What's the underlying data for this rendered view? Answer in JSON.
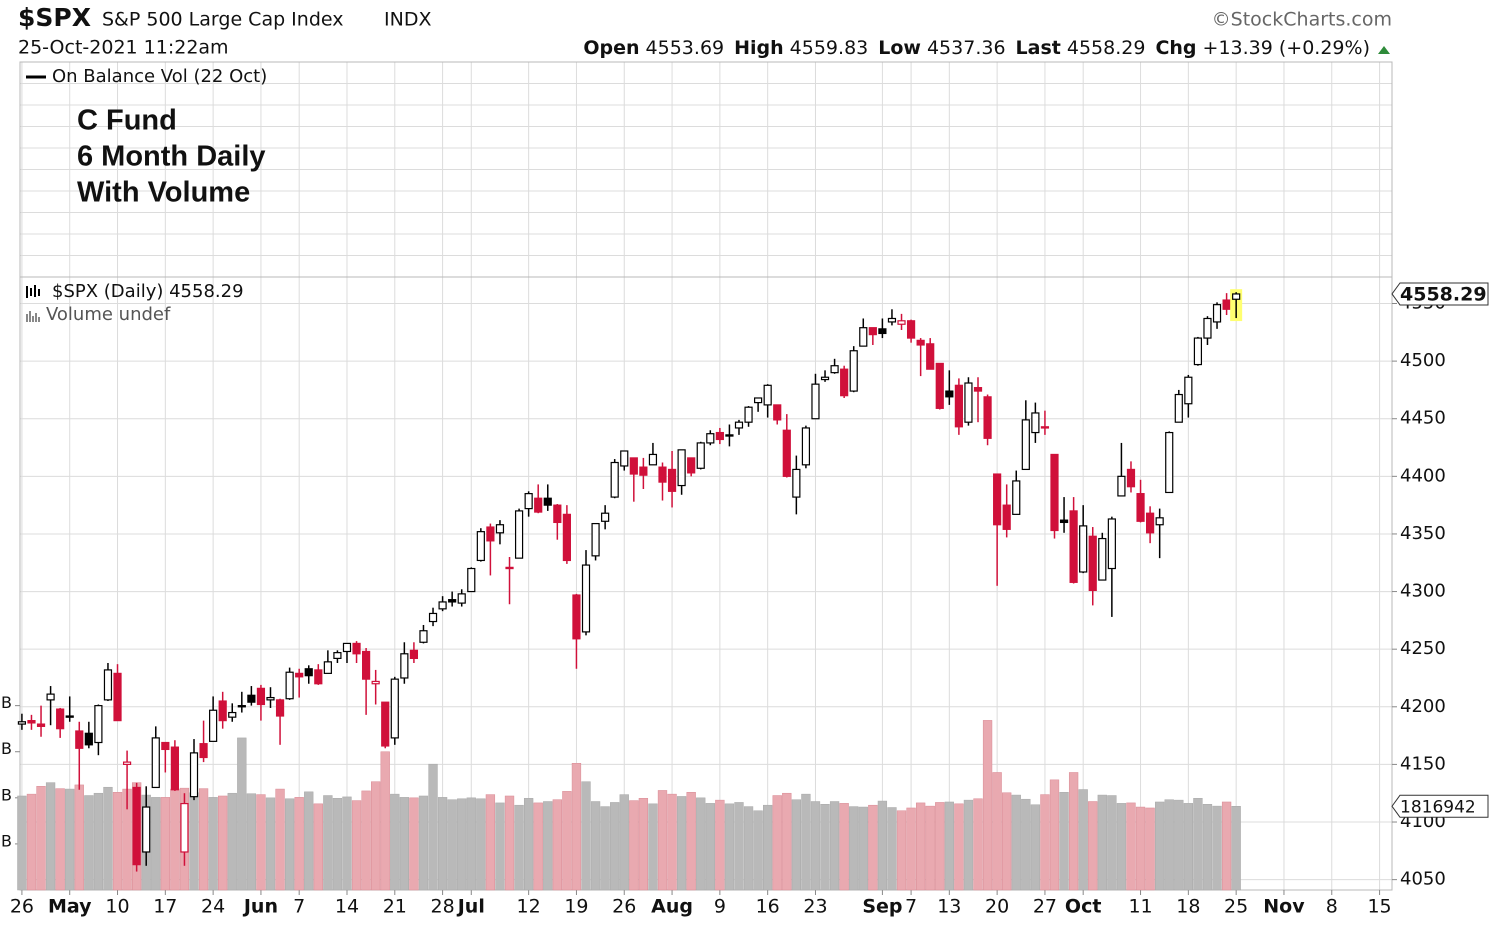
{
  "chart_data": {
    "type": "candlestick",
    "title": "$SPX",
    "subtitle": "S&P 500 Large Cap Index",
    "exchange": "INDX",
    "source": "©StockCharts.com",
    "timestamp": "25-Oct-2021 11:22am",
    "stats": [
      {
        "label": "Open",
        "value": 4553.69
      },
      {
        "label": "High",
        "value": 4559.83
      },
      {
        "label": "Low",
        "value": 4537.36
      },
      {
        "label": "Last",
        "value": 4558.29
      },
      {
        "label": "Chg",
        "value": "+13.39 (+0.29%)"
      }
    ],
    "indicator_legend": "On Balance Vol (22 Oct)",
    "annotation": [
      "C Fund",
      "6 Month Daily",
      "With Volume"
    ],
    "price_legend": "$SPX (Daily) 4558.29",
    "volume_legend": "Volume undef",
    "x": [
      0,
      1,
      2,
      3,
      4,
      5,
      6,
      7,
      8,
      9,
      10,
      11,
      12,
      13,
      14,
      15,
      16,
      17,
      18,
      19,
      20,
      21,
      22,
      23,
      24,
      25,
      26,
      27,
      28,
      29,
      30,
      31,
      32,
      33,
      34,
      35,
      36,
      37,
      38,
      39,
      40,
      41,
      42,
      43,
      44,
      45,
      46,
      47,
      48,
      49,
      50,
      51,
      52,
      53,
      54,
      55,
      56,
      57,
      58,
      59,
      60,
      61,
      62,
      63,
      64,
      65,
      66,
      67,
      68,
      69,
      70,
      71,
      72,
      73,
      74,
      75,
      76,
      77,
      78,
      79,
      80,
      81,
      82,
      83,
      84,
      85,
      86,
      87,
      88,
      89,
      90,
      91,
      92,
      93,
      94,
      95,
      96,
      97,
      98,
      99,
      100,
      101,
      102,
      103,
      104,
      105,
      106,
      107,
      108,
      109,
      110,
      111,
      112,
      113,
      114,
      115,
      116,
      117,
      118,
      119,
      120,
      121,
      122,
      123,
      124,
      125,
      126,
      127
    ],
    "open": [
      4185,
      4188,
      4185,
      4206,
      4198,
      4191,
      4179,
      4177,
      4169,
      4206,
      4229,
      4150,
      4130,
      4074,
      4130,
      4169,
      4165,
      4074,
      4122,
      4168,
      4170,
      4205,
      4191,
      4201,
      4210,
      4216,
      4206,
      4206,
      4207,
      4229,
      4233,
      4232,
      4229,
      4242,
      4248,
      4255,
      4248,
      4220,
      4204,
      4173,
      4225,
      4249,
      4256,
      4274,
      4285,
      4293,
      4290,
      4300,
      4327,
      4356,
      4351,
      4321,
      4329,
      4372,
      4381,
      4381,
      4375,
      4367,
      4297,
      4265,
      4331,
      4361,
      4382,
      4409,
      4416,
      4408,
      4410,
      4408,
      4406,
      4392,
      4416,
      4407,
      4429,
      4438,
      4435,
      4442,
      4447,
      4464,
      4462,
      4462,
      4440,
      4382,
      4410,
      4450,
      4484,
      4490,
      4493,
      4474,
      4513,
      4529,
      4528,
      4534,
      4532,
      4535,
      4518,
      4515,
      4498,
      4474,
      4479,
      4447,
      4477,
      4469,
      4402,
      4375,
      4367,
      4406,
      4438,
      4442,
      4419,
      4362,
      4370,
      4317,
      4348,
      4310,
      4320,
      4383,
      4406,
      4385,
      4368,
      4358,
      4386,
      4447,
      4463,
      4497,
      4520,
      4534,
      4553,
      4553.69
    ],
    "high": [
      4194,
      4193,
      4201,
      4218,
      4199,
      4209,
      4187,
      4187,
      4202,
      4238,
      4237,
      4162,
      4134,
      4131,
      4183,
      4169,
      4171,
      4125,
      4172,
      4188,
      4209,
      4213,
      4203,
      4213,
      4218,
      4219,
      4217,
      4207,
      4234,
      4233,
      4236,
      4237,
      4249,
      4249,
      4255,
      4257,
      4251,
      4232,
      4204,
      4226,
      4256,
      4256,
      4271,
      4286,
      4296,
      4300,
      4302,
      4321,
      4355,
      4359,
      4362,
      4330,
      4372,
      4387,
      4393,
      4393,
      4376,
      4375,
      4298,
      4336,
      4359,
      4375,
      4415,
      4422,
      4416,
      4416,
      4429,
      4412,
      4422,
      4423,
      4416,
      4430,
      4440,
      4442,
      4445,
      4449,
      4461,
      4468,
      4480,
      4462,
      4454,
      4418,
      4444,
      4489,
      4492,
      4502,
      4496,
      4513,
      4537,
      4528,
      4537,
      4545,
      4541,
      4536,
      4520,
      4520,
      4498,
      4492,
      4485,
      4486,
      4486,
      4471,
      4402,
      4393,
      4405,
      4466,
      4464,
      4457,
      4419,
      4382,
      4382,
      4375,
      4356,
      4351,
      4365,
      4429,
      4413,
      4397,
      4374,
      4372,
      4439,
      4475,
      4488,
      4521,
      4539,
      4551,
      4559,
      4559.83
    ],
    "low": [
      4180,
      4180,
      4174,
      4184,
      4173,
      4187,
      4128,
      4164,
      4158,
      4205,
      4188,
      4111,
      4057,
      4062,
      4130,
      4143,
      4127,
      4062,
      4119,
      4152,
      4170,
      4181,
      4187,
      4195,
      4201,
      4188,
      4199,
      4167,
      4206,
      4208,
      4220,
      4219,
      4229,
      4238,
      4238,
      4238,
      4193,
      4202,
      4164,
      4167,
      4220,
      4238,
      4255,
      4270,
      4283,
      4287,
      4287,
      4300,
      4326,
      4314,
      4341,
      4289,
      4329,
      4365,
      4368,
      4370,
      4345,
      4324,
      4233,
      4262,
      4327,
      4354,
      4381,
      4405,
      4378,
      4389,
      4410,
      4379,
      4373,
      4384,
      4400,
      4406,
      4427,
      4428,
      4426,
      4436,
      4443,
      4456,
      4451,
      4445,
      4399,
      4367,
      4407,
      4450,
      4482,
      4489,
      4468,
      4473,
      4513,
      4514,
      4520,
      4531,
      4527,
      4516,
      4487,
      4493,
      4458,
      4462,
      4436,
      4444,
      4447,
      4427,
      4305,
      4347,
      4367,
      4406,
      4429,
      4436,
      4346,
      4351,
      4307,
      4316,
      4288,
      4310,
      4278,
      4383,
      4386,
      4360,
      4342,
      4329,
      4386,
      4447,
      4451,
      4496,
      4514,
      4528,
      4540,
      4537.36
    ],
    "close": [
      4187,
      4186,
      4183,
      4211,
      4181,
      4192,
      4164,
      4167,
      4201,
      4232,
      4188,
      4152,
      4063,
      4113,
      4173,
      4163,
      4128,
      4116,
      4160,
      4156,
      4197,
      4188,
      4195,
      4200,
      4204,
      4202,
      4208,
      4192,
      4230,
      4226,
      4227,
      4220,
      4239,
      4247,
      4255,
      4246,
      4224,
      4222,
      4166,
      4224,
      4246,
      4242,
      4266,
      4281,
      4291,
      4291,
      4298,
      4320,
      4352,
      4344,
      4358,
      4320,
      4370,
      4385,
      4369,
      4375,
      4360,
      4327,
      4259,
      4323,
      4359,
      4368,
      4412,
      4422,
      4402,
      4401,
      4419,
      4395,
      4387,
      4423,
      4403,
      4429,
      4437,
      4432,
      4436,
      4447,
      4460,
      4468,
      4479,
      4449,
      4400,
      4406,
      4442,
      4480,
      4486,
      4496,
      4470,
      4509,
      4529,
      4523,
      4524,
      4537,
      4535,
      4520,
      4514,
      4493,
      4459,
      4469,
      4443,
      4481,
      4474,
      4433,
      4358,
      4354,
      4396,
      4449,
      4455,
      4443,
      4353,
      4360,
      4308,
      4357,
      4301,
      4346,
      4363,
      4400,
      4391,
      4361,
      4351,
      4364,
      4438,
      4471,
      4486,
      4520,
      4537,
      4549,
      4545,
      4558.29
    ],
    "volume": [
      2040000,
      2080000,
      2250000,
      2330000,
      2200000,
      2190000,
      2280000,
      2050000,
      2100000,
      2230000,
      2120000,
      2190000,
      2330000,
      2060000,
      2010000,
      2010000,
      2190000,
      2210000,
      2110000,
      2200000,
      2010000,
      2040000,
      2100000,
      3300000,
      2090000,
      2070000,
      2000000,
      2190000,
      1980000,
      2010000,
      2130000,
      1870000,
      2050000,
      1990000,
      2020000,
      1940000,
      2150000,
      2350000,
      3000000,
      2080000,
      2010000,
      2000000,
      2040000,
      2730000,
      2010000,
      1960000,
      1980000,
      2000000,
      1980000,
      2070000,
      1890000,
      2040000,
      1840000,
      1990000,
      1890000,
      1920000,
      1960000,
      2140000,
      2750000,
      2350000,
      1920000,
      1810000,
      1900000,
      2070000,
      1940000,
      1990000,
      1870000,
      2160000,
      2080000,
      2030000,
      2120000,
      2000000,
      1880000,
      1950000,
      1870000,
      1900000,
      1810000,
      1720000,
      1840000,
      2050000,
      2100000,
      1960000,
      2080000,
      1920000,
      1860000,
      1920000,
      1880000,
      1810000,
      1800000,
      1840000,
      1930000,
      1790000,
      1720000,
      1780000,
      1890000,
      1820000,
      1900000,
      1910000,
      1870000,
      1950000,
      1980000,
      3680000,
      2550000,
      2110000,
      2060000,
      1970000,
      1850000,
      2070000,
      2390000,
      2120000,
      2550000,
      2180000,
      1920000,
      2060000,
      2050000,
      1880000,
      1890000,
      1800000,
      1780000,
      1910000,
      1960000,
      1950000,
      1880000,
      1990000,
      1860000,
      1820000,
      1910000,
      1816942
    ],
    "xlim": [
      -0.2,
      143.3
    ],
    "xticks": [
      {
        "value": 0,
        "label": "26"
      },
      {
        "value": 5,
        "label": "May"
      },
      {
        "value": 10,
        "label": "10"
      },
      {
        "value": 15,
        "label": "17"
      },
      {
        "value": 20,
        "label": "24"
      },
      {
        "value": 25,
        "label": "Jun"
      },
      {
        "value": 29,
        "label": "7"
      },
      {
        "value": 34,
        "label": "14"
      },
      {
        "value": 39,
        "label": "21"
      },
      {
        "value": 44,
        "label": "28"
      },
      {
        "value": 47,
        "label": "Jul"
      },
      {
        "value": 53,
        "label": "12"
      },
      {
        "value": 58,
        "label": "19"
      },
      {
        "value": 63,
        "label": "26"
      },
      {
        "value": 68,
        "label": "Aug"
      },
      {
        "value": 73,
        "label": "9"
      },
      {
        "value": 78,
        "label": "16"
      },
      {
        "value": 83,
        "label": "23"
      },
      {
        "value": 90,
        "label": "Sep"
      },
      {
        "value": 93,
        "label": "7"
      },
      {
        "value": 97,
        "label": "13"
      },
      {
        "value": 102,
        "label": "20"
      },
      {
        "value": 107,
        "label": "27"
      },
      {
        "value": 111,
        "label": "Oct"
      },
      {
        "value": 117,
        "label": "11"
      },
      {
        "value": 122,
        "label": "18"
      },
      {
        "value": 127,
        "label": "25"
      },
      {
        "value": 132,
        "label": "Nov"
      },
      {
        "value": 137,
        "label": "8"
      },
      {
        "value": 142,
        "label": "15"
      }
    ],
    "ylim": [
      4041,
      4573
    ],
    "yticks": [
      4050,
      4100,
      4150,
      4200,
      4250,
      4300,
      4350,
      4400,
      4450,
      4500,
      4550
    ],
    "y2lim": [
      0,
      13300000
    ],
    "y2ticks": [
      {
        "value": 1000000,
        "label": "B"
      },
      {
        "value": 2000000,
        "label": "B"
      },
      {
        "value": 3000000,
        "label": "B"
      },
      {
        "value": 4000000,
        "label": "B"
      }
    ],
    "grid": true,
    "colors": {
      "up": "#000000",
      "down": "#d0103a",
      "volume_up": "#b9b9b9",
      "volume_down": "#e9a9b0",
      "highlight": "#ffff70",
      "change": "#2e8b3a"
    }
  }
}
